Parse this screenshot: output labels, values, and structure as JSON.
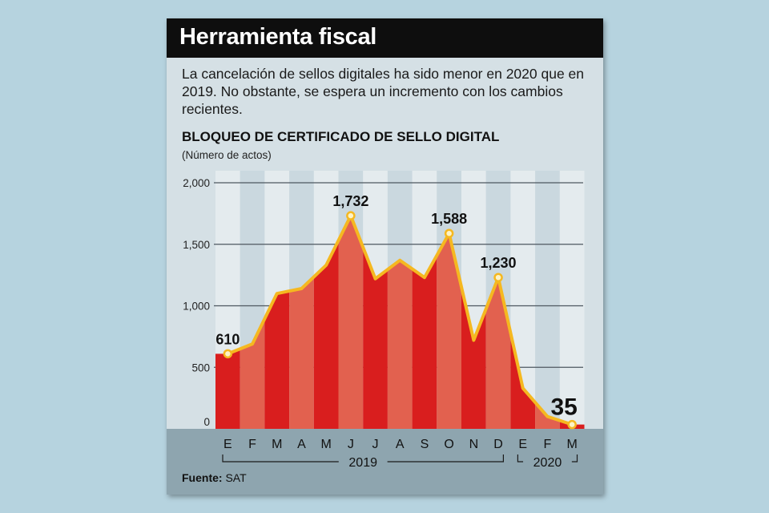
{
  "header": {
    "title": "Herramienta fiscal",
    "intro": "La cancelación de sellos digitales ha sido menor en 2020 que en 2019. No obstante, se espera un incremento con los cambios recientes."
  },
  "source": {
    "label": "Fuente:",
    "value": "SAT"
  },
  "colors": {
    "bar_dark": "#d91e1e",
    "bar_light": "#e2614f",
    "line": "#f5b820",
    "point_fill": "#fdf3c6",
    "band_light": "#e4ebee",
    "band_dark": "#cad8df"
  },
  "chart_data": {
    "type": "area",
    "title": "BLOQUEO DE CERTIFICADO DE SELLO DIGITAL",
    "subtitle": "(Número de actos)",
    "xlabel": "",
    "ylabel": "Número de actos",
    "ylim": [
      0,
      2000
    ],
    "yticks": [
      0,
      500,
      1000,
      1500,
      2000
    ],
    "ytick_labels": [
      "0",
      "500",
      "1,000",
      "1,500",
      "2,000"
    ],
    "categories": [
      "E",
      "F",
      "M",
      "A",
      "M",
      "J",
      "J",
      "A",
      "S",
      "O",
      "N",
      "D",
      "E",
      "F",
      "M"
    ],
    "values": [
      610,
      690,
      1100,
      1140,
      1330,
      1732,
      1220,
      1370,
      1230,
      1588,
      720,
      1230,
      330,
      100,
      35
    ],
    "year_groups": [
      {
        "label": "2019",
        "from": 0,
        "to": 11
      },
      {
        "label": "2020",
        "from": 12,
        "to": 14
      }
    ],
    "annotations": [
      {
        "index": 0,
        "label": "610"
      },
      {
        "index": 5,
        "label": "1,732"
      },
      {
        "index": 9,
        "label": "1,588"
      },
      {
        "index": 11,
        "label": "1,230"
      },
      {
        "index": 14,
        "label": "35"
      }
    ]
  }
}
